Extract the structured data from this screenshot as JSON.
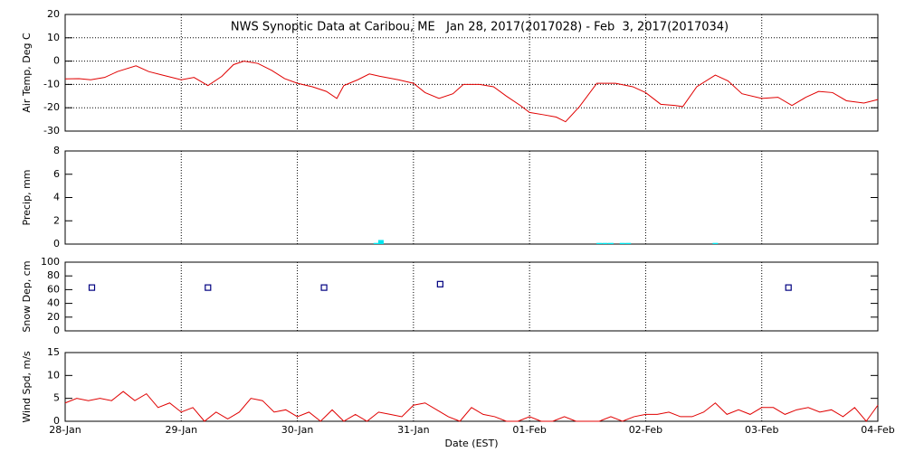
{
  "chart_data": [
    {
      "type": "line",
      "title": "NWS Synoptic Data at Caribou, ME   Jan 28, 2017(2017028) - Feb  3, 2017(2017034)",
      "y_label": "Air Temp, Deg C",
      "ylim": [
        -30,
        20
      ],
      "yticks": [
        -30,
        -20,
        -10,
        0,
        10,
        20
      ],
      "grid": true,
      "x": [
        0,
        0.12,
        0.22,
        0.34,
        0.45,
        0.61,
        0.72,
        0.84,
        1.0,
        1.11,
        1.23,
        1.35,
        1.45,
        1.54,
        1.66,
        1.78,
        1.89,
        2.0,
        2.13,
        2.25,
        2.34,
        2.4,
        2.52,
        2.62,
        2.71,
        2.87,
        3.0,
        3.1,
        3.22,
        3.34,
        3.43,
        3.57,
        3.69,
        3.8,
        3.92,
        4.0,
        4.12,
        4.23,
        4.31,
        4.43,
        4.58,
        4.74,
        4.89,
        5.0,
        5.13,
        5.25,
        5.32,
        5.44,
        5.6,
        5.71,
        5.83,
        6.0,
        6.14,
        6.26,
        6.38,
        6.49,
        6.61,
        6.73,
        6.88,
        7.0
      ],
      "series": [
        {
          "name": "Air Temp",
          "color": "#e00000",
          "values": [
            -7.6,
            -7.5,
            -8,
            -7,
            -4.5,
            -2,
            -4.5,
            -6,
            -8,
            -7,
            -10.5,
            -6.5,
            -1.5,
            0,
            -1,
            -4,
            -7.5,
            -9.5,
            -11,
            -13,
            -16,
            -10.5,
            -8,
            -5.5,
            -6.5,
            -8,
            -9.5,
            -13.5,
            -16,
            -14,
            -10,
            -10,
            -11,
            -15,
            -19,
            -22,
            -23,
            -24,
            -26,
            -19.5,
            -9.5,
            -9.5,
            -11,
            -13.5,
            -18.5,
            -19,
            -19.5,
            -11,
            -6,
            -8.5,
            -14,
            -16,
            -15.5,
            -19,
            -15.5,
            -13,
            -13.5,
            -17,
            -18,
            -16.5
          ]
        }
      ]
    },
    {
      "type": "bar",
      "y_label": "Precip, mm",
      "ylim": [
        0,
        8
      ],
      "yticks": [
        0,
        2,
        4,
        6,
        8
      ],
      "grid": false,
      "x": [
        2.68,
        2.72,
        4.6,
        4.65,
        4.7,
        4.8,
        4.85,
        5.6
      ],
      "series": [
        {
          "name": "Precip",
          "color": "#00e5ee",
          "values": [
            0.1,
            0.35,
            0.1,
            0.1,
            0.1,
            0.1,
            0.1,
            0.1
          ]
        }
      ]
    },
    {
      "type": "scatter",
      "y_label": "Snow Dep, cm",
      "ylim": [
        0,
        100
      ],
      "yticks": [
        0,
        20,
        40,
        60,
        80,
        100
      ],
      "grid": false,
      "x": [
        0.23,
        1.23,
        2.23,
        3.23,
        6.23
      ],
      "series": [
        {
          "name": "Snow Depth",
          "color": "#000080",
          "values": [
            63,
            63,
            63,
            68,
            63
          ]
        }
      ]
    },
    {
      "type": "line",
      "y_label": "Wind Spd, m/s",
      "x_label": "Date (EST)",
      "ylim": [
        0,
        15
      ],
      "yticks": [
        0,
        5,
        10,
        15
      ],
      "grid": false,
      "xlim": [
        0,
        7
      ],
      "xticks": [
        {
          "value": 0,
          "label": "28-Jan"
        },
        {
          "value": 1,
          "label": "29-Jan"
        },
        {
          "value": 2,
          "label": "30-Jan"
        },
        {
          "value": 3,
          "label": "31-Jan"
        },
        {
          "value": 4,
          "label": "01-Feb"
        },
        {
          "value": 5,
          "label": "02-Feb"
        },
        {
          "value": 6,
          "label": "03-Feb"
        },
        {
          "value": 7,
          "label": "04-Feb"
        }
      ],
      "x": [
        0,
        0.1,
        0.2,
        0.3,
        0.4,
        0.5,
        0.6,
        0.7,
        0.8,
        0.9,
        1.0,
        1.1,
        1.2,
        1.3,
        1.4,
        1.5,
        1.6,
        1.7,
        1.8,
        1.9,
        2.0,
        2.1,
        2.2,
        2.3,
        2.4,
        2.5,
        2.6,
        2.7,
        2.8,
        2.9,
        3.0,
        3.1,
        3.2,
        3.3,
        3.4,
        3.5,
        3.6,
        3.7,
        3.8,
        3.9,
        4.0,
        4.1,
        4.2,
        4.3,
        4.4,
        4.5,
        4.6,
        4.7,
        4.8,
        4.9,
        5.0,
        5.1,
        5.2,
        5.3,
        5.4,
        5.5,
        5.6,
        5.7,
        5.8,
        5.9,
        6.0,
        6.1,
        6.2,
        6.3,
        6.4,
        6.5,
        6.6,
        6.7,
        6.8,
        6.9,
        7.0
      ],
      "series": [
        {
          "name": "Wind Speed",
          "color": "#e00000",
          "values": [
            4,
            5,
            4.5,
            5,
            4.5,
            6.5,
            4.5,
            6,
            3,
            4,
            2,
            3,
            0,
            2,
            0.5,
            2,
            5,
            4.5,
            2,
            2.5,
            1,
            2,
            0,
            2.5,
            0,
            1.5,
            0,
            2,
            1.5,
            1,
            3.5,
            4,
            2.5,
            1,
            0,
            3,
            1.5,
            1,
            0,
            0,
            1,
            0,
            0,
            1,
            0,
            0,
            0,
            1,
            0,
            1,
            1.5,
            1.5,
            2,
            1,
            1,
            2,
            4,
            1.5,
            2.5,
            1.5,
            3,
            3,
            1.5,
            2.5,
            3,
            2,
            2.5,
            1,
            3,
            0,
            3.5
          ]
        }
      ]
    }
  ]
}
